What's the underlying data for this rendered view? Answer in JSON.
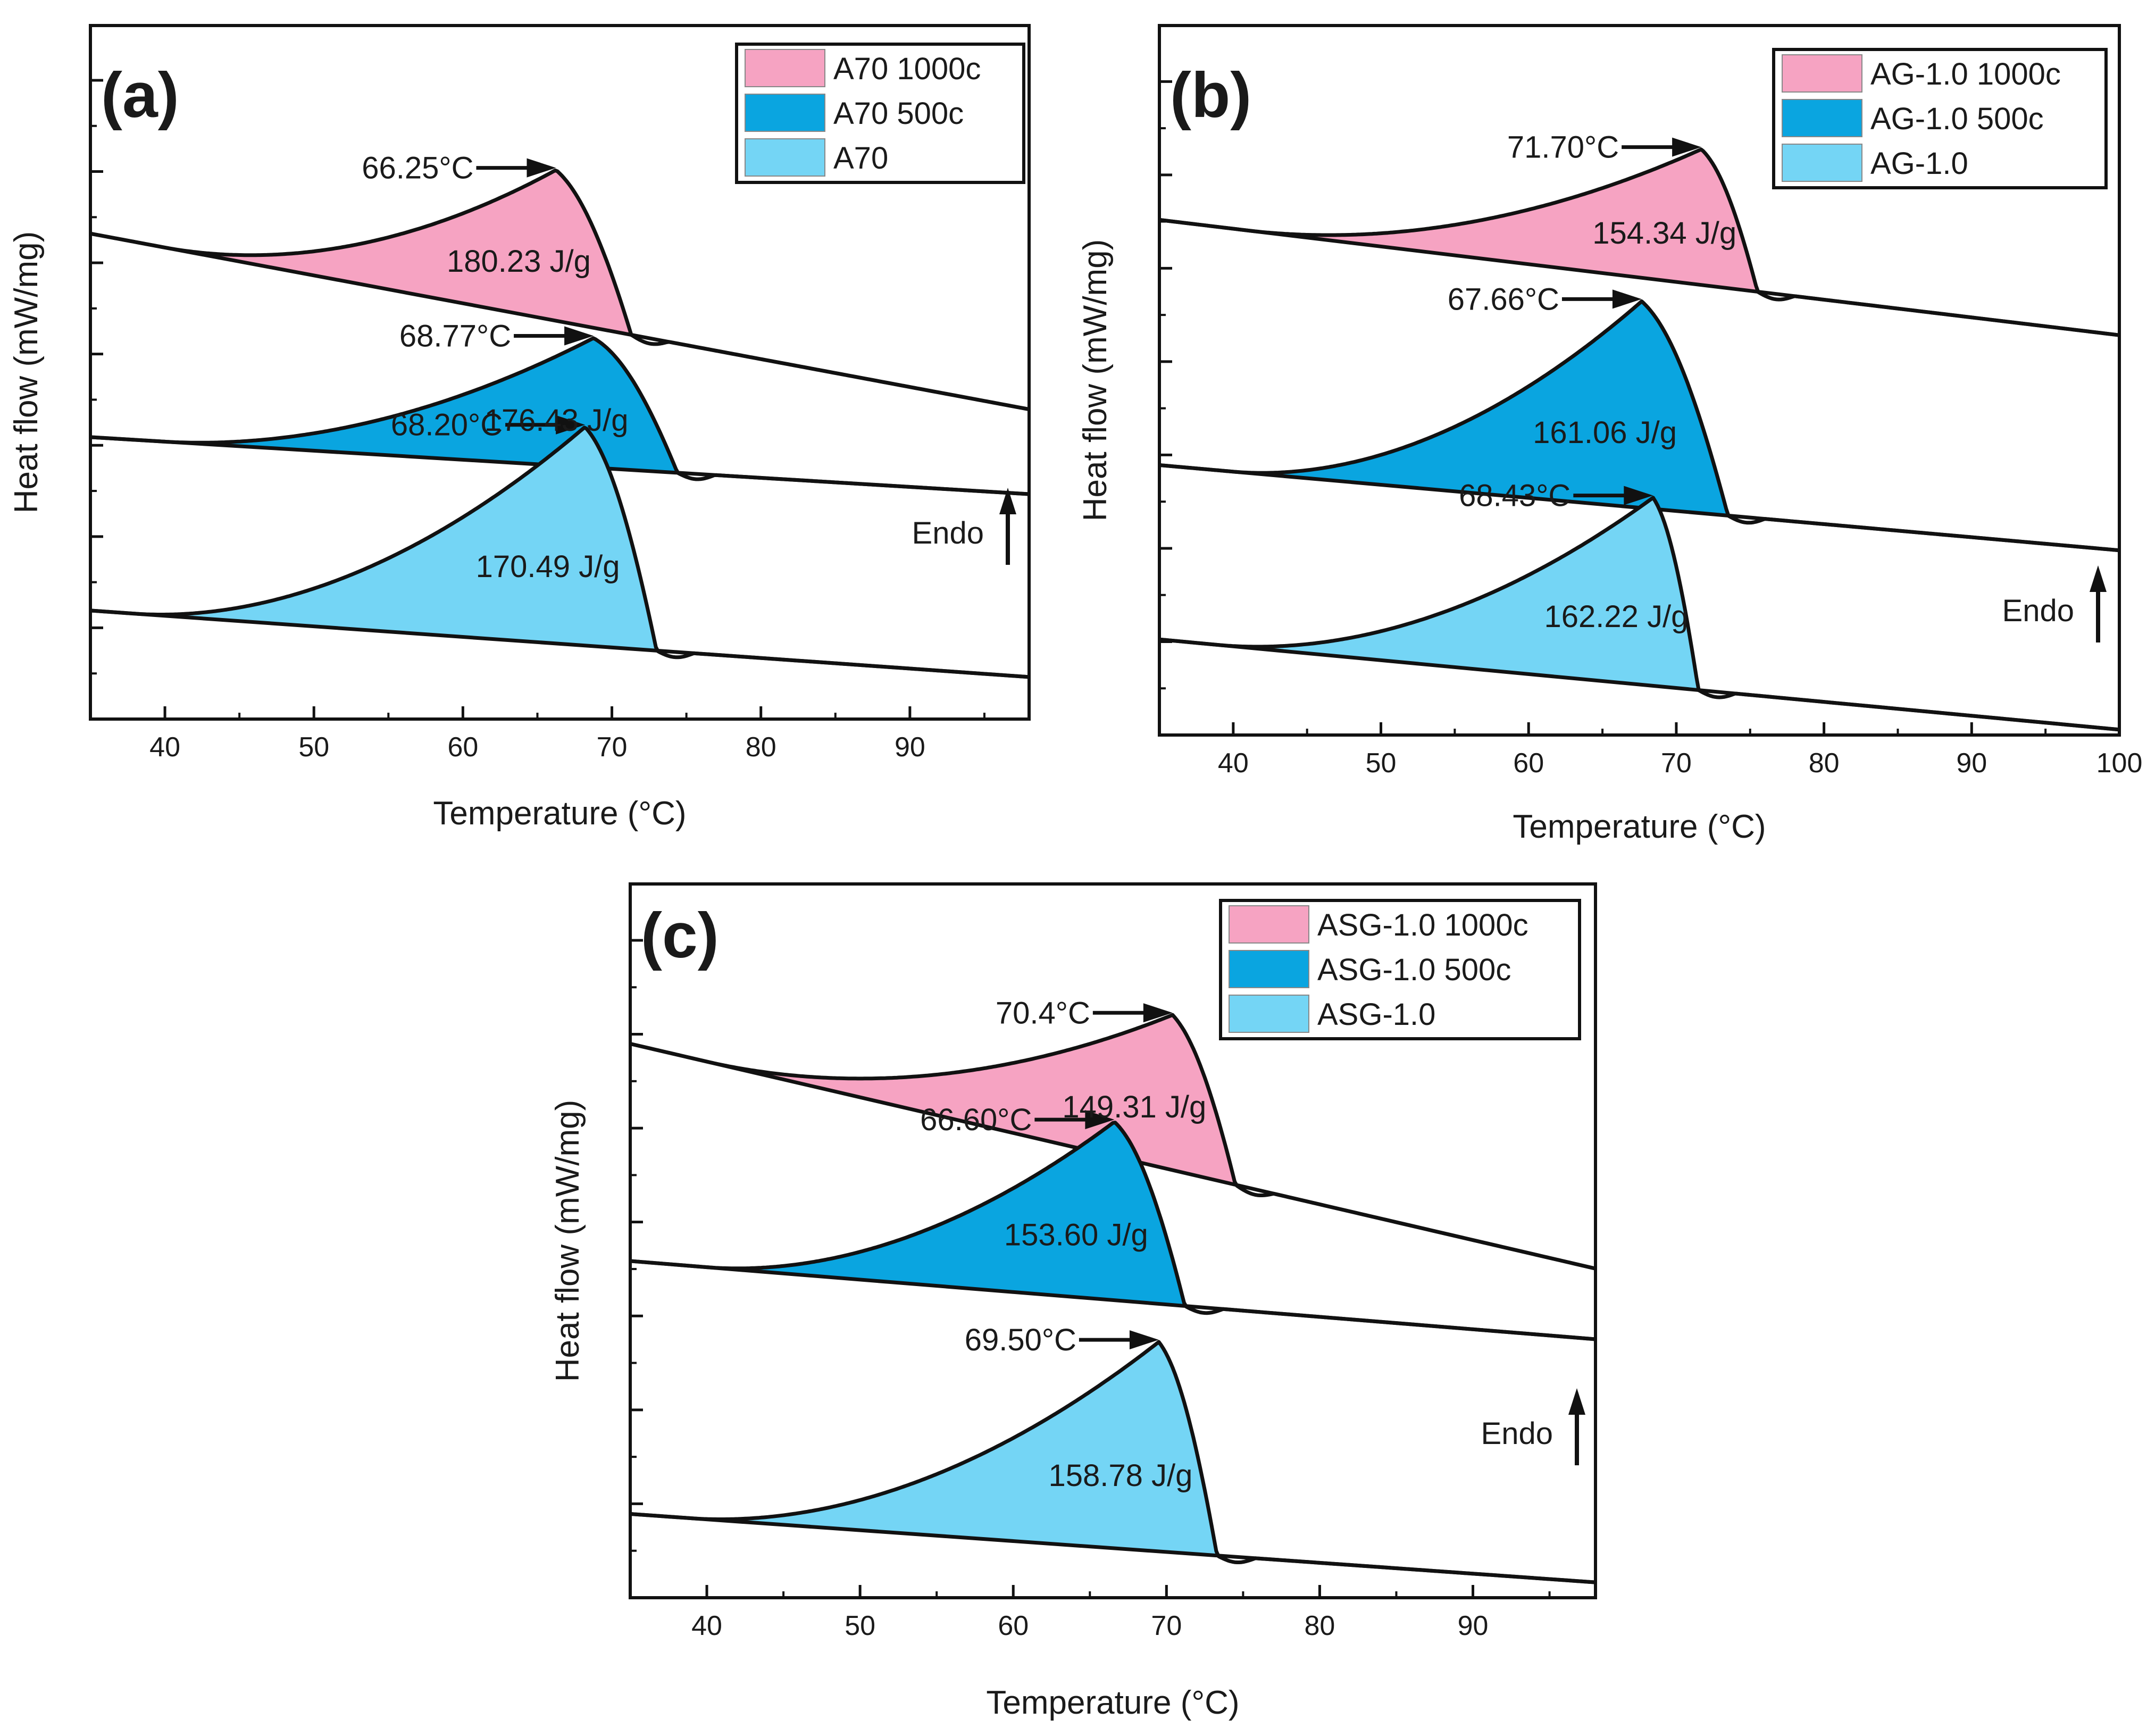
{
  "figure": {
    "description_free": true
  },
  "colors": {
    "pink": "#f6a3c2",
    "blue": "#0aa5e0",
    "lightblue": "#74d5f5",
    "line": "#111111"
  },
  "chart_data": [
    {
      "panel": "(a)",
      "type": "area",
      "xlabel": "Temperature (°C)",
      "ylabel": "Heat flow (mW/mg)",
      "xlim": [
        35,
        98
      ],
      "xticks": [
        40,
        50,
        60,
        70,
        80,
        90
      ],
      "tick_labels": [
        "40",
        "50",
        "60",
        "70",
        "80",
        "90"
      ],
      "legend": [
        "A70 1000c",
        "A70 500c",
        "A70"
      ],
      "legend_position": "top-right",
      "endo_label": "Endo",
      "series": [
        {
          "name": "A70 1000c",
          "color": "pink",
          "peak_temp": 66.25,
          "peak_label": "66.25°C",
          "enthalpy_label": "180.23 J/g",
          "onset": 40,
          "end": 71.3,
          "offset": 3.1,
          "height": 1.0,
          "base_a": 0.12,
          "base_slope": -0.00185
        },
        {
          "name": "A70 500c",
          "color": "blue",
          "peak_temp": 68.77,
          "peak_label": "68.77°C",
          "enthalpy_label": "176.43 J/g",
          "onset": 40,
          "end": 74.4,
          "offset": 1.75,
          "height": 0.86,
          "base_a": 0.12,
          "base_slope": -0.0006
        },
        {
          "name": "A70",
          "color": "lightblue",
          "peak_temp": 68.2,
          "peak_label": "68.20°C",
          "enthalpy_label": "170.49 J/g",
          "onset": 38,
          "end": 73.0,
          "offset": 0.6,
          "height": 1.45,
          "base_a": 0.12,
          "base_slope": -0.0007
        }
      ]
    },
    {
      "panel": "(b)",
      "type": "area",
      "xlabel": "Temperature (°C)",
      "ylabel": "Heat flow (mW/mg)",
      "xlim": [
        35,
        100
      ],
      "xticks": [
        40,
        50,
        60,
        70,
        80,
        90,
        100
      ],
      "tick_labels": [
        "40",
        "50",
        "60",
        "70",
        "80",
        "90",
        "100"
      ],
      "legend": [
        "AG-1.0 1000c",
        "AG-1.0 500c",
        "AG-1.0"
      ],
      "legend_position": "top-right",
      "endo_label": "Endo",
      "series": [
        {
          "name": "AG-1.0 1000c",
          "color": "pink",
          "peak_temp": 71.7,
          "peak_label": "71.70°C",
          "enthalpy_label": "154.34 J/g",
          "onset": 41,
          "end": 75.5,
          "offset": 3.22,
          "height": 0.88,
          "base_a": 0.12,
          "base_slope": -0.00115
        },
        {
          "name": "AG-1.0 500c",
          "color": "blue",
          "peak_temp": 67.66,
          "peak_label": "67.66°C",
          "enthalpy_label": "161.06 J/g",
          "onset": 40,
          "end": 73.5,
          "offset": 1.63,
          "height": 1.34,
          "base_a": 0.12,
          "base_slope": -0.00085
        },
        {
          "name": "AG-1.0",
          "color": "lightblue",
          "peak_temp": 68.43,
          "peak_label": "68.43°C",
          "enthalpy_label": "162.22 J/g",
          "onset": 39,
          "end": 71.5,
          "offset": 0.5,
          "height": 1.22,
          "base_a": 0.12,
          "base_slope": -0.0009
        }
      ]
    },
    {
      "panel": "(c)",
      "type": "area",
      "xlabel": "Temperature (°C)",
      "ylabel": "Heat flow (mW/mg)",
      "xlim": [
        35,
        98
      ],
      "xticks": [
        40,
        50,
        60,
        70,
        80,
        90
      ],
      "tick_labels": [
        "40",
        "50",
        "60",
        "70",
        "80",
        "90"
      ],
      "legend": [
        "ASG-1.0 1000c",
        "ASG-1.0 500c",
        "ASG-1.0"
      ],
      "legend_position": "top-right",
      "endo_label": "Endo",
      "series": [
        {
          "name": "ASG-1.0 1000c",
          "color": "pink",
          "peak_temp": 70.4,
          "peak_label": "70.4°C",
          "enthalpy_label": "149.31 J/g",
          "onset": 40,
          "end": 74.5,
          "offset": 3.45,
          "height": 1.0,
          "base_a": 0.12,
          "base_slope": -0.0023
        },
        {
          "name": "ASG-1.0 500c",
          "color": "blue",
          "peak_temp": 66.6,
          "peak_label": "66.60°C",
          "enthalpy_label": "153.60 J/g",
          "onset": 40,
          "end": 71.2,
          "offset": 2.05,
          "height": 1.15,
          "base_a": 0.12,
          "base_slope": -0.0008
        },
        {
          "name": "ASG-1.0",
          "color": "lightblue",
          "peak_temp": 69.5,
          "peak_label": "69.50°C",
          "enthalpy_label": "158.78 J/g",
          "onset": 39,
          "end": 73.3,
          "offset": 0.42,
          "height": 1.35,
          "base_a": 0.12,
          "base_slope": -0.0007
        }
      ]
    }
  ]
}
